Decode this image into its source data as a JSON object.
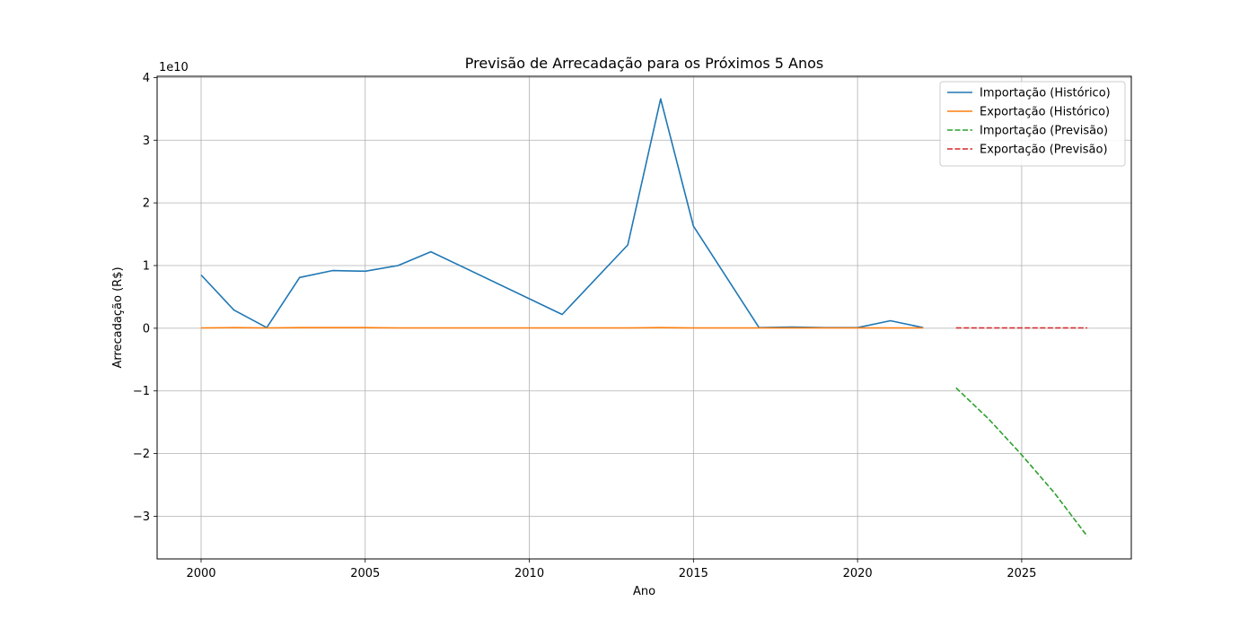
{
  "chart_data": {
    "type": "line",
    "title": "Previsão de Arrecadação para os Próximos 5 Anos",
    "xlabel": "Ano",
    "ylabel": "Arrecadação (R$)",
    "y_offset_label": "1e10",
    "xlim": [
      1998.66,
      2028.34
    ],
    "ylim": [
      -3.68,
      4.02
    ],
    "x_ticks": [
      2000,
      2005,
      2010,
      2015,
      2020,
      2025
    ],
    "y_ticks": [
      -3,
      -2,
      -1,
      0,
      1,
      2,
      3,
      4
    ],
    "y_tick_labels": [
      "−3",
      "−2",
      "−1",
      "0",
      "1",
      "2",
      "3",
      "4"
    ],
    "grid": true,
    "legend_position": "top-right",
    "series": [
      {
        "name": "Importação (Histórico)",
        "color": "#1f77b4",
        "dash": "solid",
        "x": [
          2000,
          2001,
          2002,
          2003,
          2004,
          2005,
          2006,
          2007,
          2011,
          2013,
          2014,
          2015,
          2017,
          2018,
          2019,
          2020,
          2021,
          2022
        ],
        "y": [
          0.85,
          0.29,
          0.01,
          0.81,
          0.92,
          0.91,
          1.0,
          1.22,
          0.22,
          1.33,
          3.66,
          1.63,
          0.01,
          0.02,
          0.01,
          0.01,
          0.12,
          0.01
        ]
      },
      {
        "name": "Exportação (Histórico)",
        "color": "#ff7f0e",
        "dash": "solid",
        "x": [
          2000,
          2001,
          2002,
          2003,
          2004,
          2005,
          2006,
          2007,
          2011,
          2013,
          2014,
          2015,
          2017,
          2018,
          2019,
          2020,
          2021,
          2022
        ],
        "y": [
          0.005,
          0.01,
          0.005,
          0.01,
          0.01,
          0.01,
          0.005,
          0.005,
          0.005,
          0.005,
          0.01,
          0.005,
          0.005,
          0.005,
          0.005,
          0.005,
          0.005,
          0.005
        ]
      },
      {
        "name": "Importação (Previsão)",
        "color": "#2ca02c",
        "dash": "dashed",
        "x": [
          2023,
          2024,
          2025,
          2026,
          2027
        ],
        "y": [
          -0.95,
          -1.45,
          -2.02,
          -2.63,
          -3.32
        ]
      },
      {
        "name": "Exportação (Previsão)",
        "color": "#d62728",
        "dash": "dashed",
        "x": [
          2023,
          2024,
          2025,
          2026,
          2027
        ],
        "y": [
          0.005,
          0.005,
          0.005,
          0.005,
          0.005
        ]
      }
    ]
  }
}
